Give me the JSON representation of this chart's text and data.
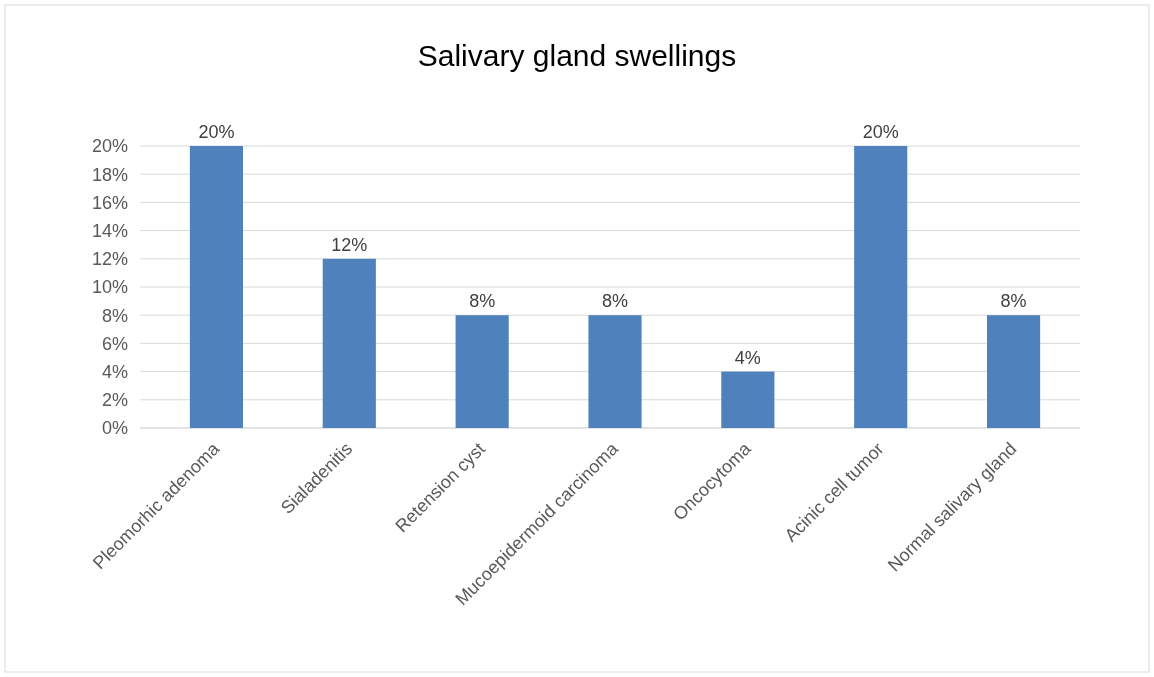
{
  "chart_data": {
    "type": "bar",
    "title": "Salivary gland swellings",
    "categories": [
      "Pleomorhic adenoma",
      "Sialadenitis",
      "Retension cyst",
      "Mucoepidermoid carcinoma",
      "Oncocytoma",
      "Acinic cell tumor",
      "Normal salivary gland"
    ],
    "values": [
      20,
      12,
      8,
      8,
      4,
      20,
      8
    ],
    "color": "#4f81bd",
    "value_labels": [
      "20%",
      "12%",
      "8%",
      "8%",
      "4%",
      "20%",
      "8%"
    ],
    "ylim": [
      0,
      20
    ],
    "yticks": [
      {
        "value": 0,
        "label": "0%"
      },
      {
        "value": 2,
        "label": "2%"
      },
      {
        "value": 4,
        "label": "4%"
      },
      {
        "value": 6,
        "label": "6%"
      },
      {
        "value": 8,
        "label": "8%"
      },
      {
        "value": 10,
        "label": "10%"
      },
      {
        "value": 12,
        "label": "12%"
      },
      {
        "value": 14,
        "label": "14%"
      },
      {
        "value": 16,
        "label": "16%"
      },
      {
        "value": 18,
        "label": "18%"
      },
      {
        "value": 20,
        "label": "20%"
      }
    ],
    "grid": "y"
  }
}
